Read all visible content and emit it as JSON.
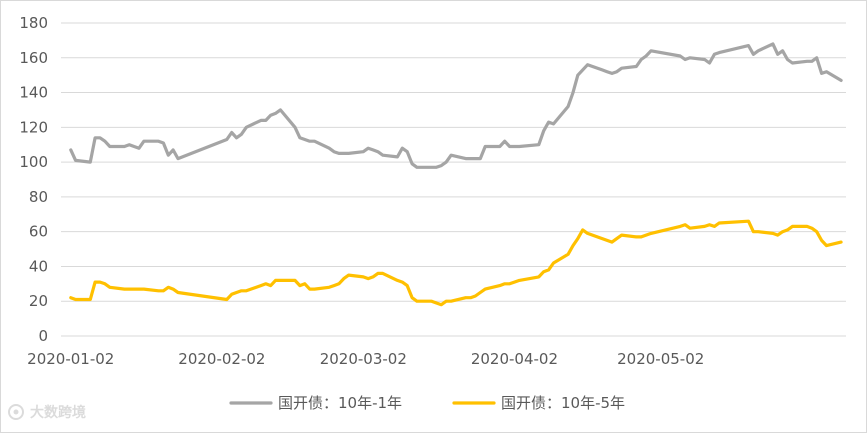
{
  "chart_data": {
    "type": "line",
    "title": "",
    "xlabel": "",
    "ylabel": "",
    "ylim": [
      0,
      180
    ],
    "yticks": [
      0,
      20,
      40,
      60,
      80,
      100,
      120,
      140,
      160,
      180
    ],
    "xtick_labels": [
      "2020-01-02",
      "2020-02-02",
      "2020-03-02",
      "2020-04-02",
      "2020-05-02"
    ],
    "grid": "horizontal",
    "legend_position": "bottom",
    "series": [
      {
        "name": "国开债：10年-1年",
        "color": "#a5a5a5",
        "points": [
          [
            "2020-01-02",
            107
          ],
          [
            "2020-01-03",
            101
          ],
          [
            "2020-01-06",
            100
          ],
          [
            "2020-01-07",
            114
          ],
          [
            "2020-01-08",
            114
          ],
          [
            "2020-01-09",
            112
          ],
          [
            "2020-01-10",
            109
          ],
          [
            "2020-01-13",
            109
          ],
          [
            "2020-01-14",
            110
          ],
          [
            "2020-01-15",
            109
          ],
          [
            "2020-01-16",
            108
          ],
          [
            "2020-01-17",
            112
          ],
          [
            "2020-01-20",
            112
          ],
          [
            "2020-01-21",
            111
          ],
          [
            "2020-01-22",
            104
          ],
          [
            "2020-01-23",
            107
          ],
          [
            "2020-01-24",
            102
          ],
          [
            "2020-02-03",
            113
          ],
          [
            "2020-02-04",
            117
          ],
          [
            "2020-02-05",
            114
          ],
          [
            "2020-02-06",
            116
          ],
          [
            "2020-02-07",
            120
          ],
          [
            "2020-02-10",
            124
          ],
          [
            "2020-02-11",
            124
          ],
          [
            "2020-02-12",
            127
          ],
          [
            "2020-02-13",
            128
          ],
          [
            "2020-02-14",
            130
          ],
          [
            "2020-02-17",
            120
          ],
          [
            "2020-02-18",
            114
          ],
          [
            "2020-02-19",
            113
          ],
          [
            "2020-02-20",
            112
          ],
          [
            "2020-02-21",
            112
          ],
          [
            "2020-02-24",
            108
          ],
          [
            "2020-02-25",
            106
          ],
          [
            "2020-02-26",
            105
          ],
          [
            "2020-02-27",
            105
          ],
          [
            "2020-02-28",
            105
          ],
          [
            "2020-03-02",
            106
          ],
          [
            "2020-03-03",
            108
          ],
          [
            "2020-03-04",
            107
          ],
          [
            "2020-03-05",
            106
          ],
          [
            "2020-03-06",
            104
          ],
          [
            "2020-03-09",
            103
          ],
          [
            "2020-03-10",
            108
          ],
          [
            "2020-03-11",
            106
          ],
          [
            "2020-03-12",
            99
          ],
          [
            "2020-03-13",
            97
          ],
          [
            "2020-03-16",
            97
          ],
          [
            "2020-03-17",
            97
          ],
          [
            "2020-03-18",
            98
          ],
          [
            "2020-03-19",
            100
          ],
          [
            "2020-03-20",
            104
          ],
          [
            "2020-03-23",
            102
          ],
          [
            "2020-03-24",
            102
          ],
          [
            "2020-03-25",
            102
          ],
          [
            "2020-03-26",
            102
          ],
          [
            "2020-03-27",
            109
          ],
          [
            "2020-03-30",
            109
          ],
          [
            "2020-03-31",
            112
          ],
          [
            "2020-04-01",
            109
          ],
          [
            "2020-04-02",
            109
          ],
          [
            "2020-04-03",
            109
          ],
          [
            "2020-04-07",
            110
          ],
          [
            "2020-04-08",
            118
          ],
          [
            "2020-04-09",
            123
          ],
          [
            "2020-04-10",
            122
          ],
          [
            "2020-04-13",
            132
          ],
          [
            "2020-04-14",
            140
          ],
          [
            "2020-04-15",
            150
          ],
          [
            "2020-04-16",
            153
          ],
          [
            "2020-04-17",
            156
          ],
          [
            "2020-04-20",
            153
          ],
          [
            "2020-04-21",
            152
          ],
          [
            "2020-04-22",
            151
          ],
          [
            "2020-04-23",
            152
          ],
          [
            "2020-04-24",
            154
          ],
          [
            "2020-04-27",
            155
          ],
          [
            "2020-04-28",
            159
          ],
          [
            "2020-04-29",
            161
          ],
          [
            "2020-04-30",
            164
          ],
          [
            "2020-05-06",
            161
          ],
          [
            "2020-05-07",
            159
          ],
          [
            "2020-05-08",
            160
          ],
          [
            "2020-05-11",
            159
          ],
          [
            "2020-05-12",
            157
          ],
          [
            "2020-05-13",
            162
          ],
          [
            "2020-05-14",
            163
          ],
          [
            "2020-05-20",
            167
          ],
          [
            "2020-05-21",
            162
          ],
          [
            "2020-05-22",
            164
          ],
          [
            "2020-05-25",
            168
          ],
          [
            "2020-05-26",
            162
          ],
          [
            "2020-05-27",
            164
          ],
          [
            "2020-05-28",
            159
          ],
          [
            "2020-05-29",
            157
          ],
          [
            "2020-06-01",
            158
          ],
          [
            "2020-06-02",
            158
          ],
          [
            "2020-06-03",
            160
          ],
          [
            "2020-06-04",
            151
          ],
          [
            "2020-06-05",
            152
          ],
          [
            "2020-06-08",
            147
          ]
        ]
      },
      {
        "name": "国开债：10年-5年",
        "color": "#ffc000",
        "points": [
          [
            "2020-01-02",
            22
          ],
          [
            "2020-01-03",
            21
          ],
          [
            "2020-01-06",
            21
          ],
          [
            "2020-01-07",
            31
          ],
          [
            "2020-01-08",
            31
          ],
          [
            "2020-01-09",
            30
          ],
          [
            "2020-01-10",
            28
          ],
          [
            "2020-01-13",
            27
          ],
          [
            "2020-01-14",
            27
          ],
          [
            "2020-01-15",
            27
          ],
          [
            "2020-01-16",
            27
          ],
          [
            "2020-01-17",
            27
          ],
          [
            "2020-01-20",
            26
          ],
          [
            "2020-01-21",
            26
          ],
          [
            "2020-01-22",
            28
          ],
          [
            "2020-01-23",
            27
          ],
          [
            "2020-01-24",
            25
          ],
          [
            "2020-02-03",
            21
          ],
          [
            "2020-02-04",
            24
          ],
          [
            "2020-02-05",
            25
          ],
          [
            "2020-02-06",
            26
          ],
          [
            "2020-02-07",
            26
          ],
          [
            "2020-02-10",
            29
          ],
          [
            "2020-02-11",
            30
          ],
          [
            "2020-02-12",
            29
          ],
          [
            "2020-02-13",
            32
          ],
          [
            "2020-02-14",
            32
          ],
          [
            "2020-02-17",
            32
          ],
          [
            "2020-02-18",
            29
          ],
          [
            "2020-02-19",
            30
          ],
          [
            "2020-02-20",
            27
          ],
          [
            "2020-02-21",
            27
          ],
          [
            "2020-02-24",
            28
          ],
          [
            "2020-02-25",
            29
          ],
          [
            "2020-02-26",
            30
          ],
          [
            "2020-02-27",
            33
          ],
          [
            "2020-02-28",
            35
          ],
          [
            "2020-03-02",
            34
          ],
          [
            "2020-03-03",
            33
          ],
          [
            "2020-03-04",
            34
          ],
          [
            "2020-03-05",
            36
          ],
          [
            "2020-03-06",
            36
          ],
          [
            "2020-03-09",
            32
          ],
          [
            "2020-03-10",
            31
          ],
          [
            "2020-03-11",
            29
          ],
          [
            "2020-03-12",
            22
          ],
          [
            "2020-03-13",
            20
          ],
          [
            "2020-03-16",
            20
          ],
          [
            "2020-03-17",
            19
          ],
          [
            "2020-03-18",
            18
          ],
          [
            "2020-03-19",
            20
          ],
          [
            "2020-03-20",
            20
          ],
          [
            "2020-03-23",
            22
          ],
          [
            "2020-03-24",
            22
          ],
          [
            "2020-03-25",
            23
          ],
          [
            "2020-03-26",
            25
          ],
          [
            "2020-03-27",
            27
          ],
          [
            "2020-03-30",
            29
          ],
          [
            "2020-03-31",
            30
          ],
          [
            "2020-04-01",
            30
          ],
          [
            "2020-04-02",
            31
          ],
          [
            "2020-04-03",
            32
          ],
          [
            "2020-04-07",
            34
          ],
          [
            "2020-04-08",
            37
          ],
          [
            "2020-04-09",
            38
          ],
          [
            "2020-04-10",
            42
          ],
          [
            "2020-04-13",
            47
          ],
          [
            "2020-04-14",
            52
          ],
          [
            "2020-04-15",
            56
          ],
          [
            "2020-04-16",
            61
          ],
          [
            "2020-04-17",
            59
          ],
          [
            "2020-04-20",
            56
          ],
          [
            "2020-04-21",
            55
          ],
          [
            "2020-04-22",
            54
          ],
          [
            "2020-04-23",
            56
          ],
          [
            "2020-04-24",
            58
          ],
          [
            "2020-04-27",
            57
          ],
          [
            "2020-04-28",
            57
          ],
          [
            "2020-04-29",
            58
          ],
          [
            "2020-04-30",
            59
          ],
          [
            "2020-05-06",
            63
          ],
          [
            "2020-05-07",
            64
          ],
          [
            "2020-05-08",
            62
          ],
          [
            "2020-05-11",
            63
          ],
          [
            "2020-05-12",
            64
          ],
          [
            "2020-05-13",
            63
          ],
          [
            "2020-05-14",
            65
          ],
          [
            "2020-05-20",
            66
          ],
          [
            "2020-05-21",
            60
          ],
          [
            "2020-05-22",
            60
          ],
          [
            "2020-05-25",
            59
          ],
          [
            "2020-05-26",
            58
          ],
          [
            "2020-05-27",
            60
          ],
          [
            "2020-05-28",
            61
          ],
          [
            "2020-05-29",
            63
          ],
          [
            "2020-06-01",
            63
          ],
          [
            "2020-06-02",
            62
          ],
          [
            "2020-06-03",
            60
          ],
          [
            "2020-06-04",
            55
          ],
          [
            "2020-06-05",
            52
          ],
          [
            "2020-06-08",
            54
          ]
        ]
      }
    ]
  },
  "watermark": {
    "text": "大数跨境"
  }
}
